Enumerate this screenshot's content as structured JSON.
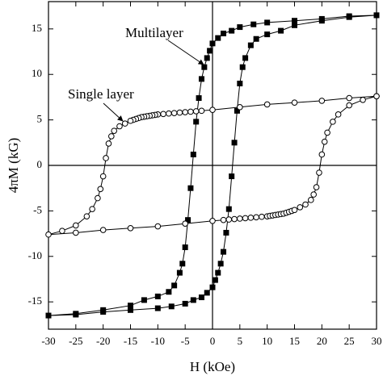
{
  "chart_data": {
    "type": "line",
    "xlabel": "H (kOe)",
    "ylabel": "4πM (kG)",
    "xlim": [
      -30,
      30
    ],
    "ylim": [
      -18,
      18
    ],
    "xticks": [
      -30,
      -25,
      -20,
      -15,
      -10,
      -5,
      0,
      5,
      10,
      15,
      20,
      25,
      30
    ],
    "yticks": [
      -15,
      -10,
      -5,
      0,
      5,
      10,
      15
    ],
    "series": [
      {
        "name": "Multilayer",
        "color": "#000000",
        "marker": "square",
        "x": [
          30,
          25,
          20,
          15,
          10,
          7.5,
          5,
          3.5,
          2,
          1,
          0,
          -0.5,
          -1,
          -1.5,
          -2,
          -2.5,
          -3,
          -3.5,
          -4,
          -4.5,
          -5,
          -5.5,
          -6,
          -7,
          -8,
          -10,
          -12.5,
          -15,
          -20,
          -25,
          -30,
          -25,
          -20,
          -15,
          -10,
          -7.5,
          -5,
          -3.5,
          -2,
          -1,
          0,
          0.5,
          1,
          1.5,
          2,
          2.5,
          3,
          3.5,
          4,
          4.5,
          5,
          5.5,
          6,
          7,
          8,
          10,
          12.5,
          15,
          20,
          25,
          30
        ],
        "values": [
          16.5,
          16.4,
          16.1,
          15.9,
          15.7,
          15.5,
          15.2,
          14.8,
          14.5,
          14.0,
          13.4,
          12.6,
          11.8,
          10.8,
          9.5,
          7.4,
          4.8,
          1.2,
          -2.5,
          -6,
          -9,
          -10.8,
          -11.8,
          -13.2,
          -13.9,
          -14.4,
          -14.8,
          -15.4,
          -15.9,
          -16.3,
          -16.5,
          -16.4,
          -16.1,
          -15.9,
          -15.7,
          -15.5,
          -15.2,
          -14.8,
          -14.5,
          -14.0,
          -13.4,
          -12.6,
          -11.8,
          -10.8,
          -9.5,
          -7.4,
          -4.8,
          -1.2,
          2.5,
          6,
          9,
          10.8,
          11.8,
          13.2,
          13.9,
          14.4,
          14.8,
          15.4,
          15.9,
          16.3,
          16.5
        ]
      },
      {
        "name": "Single layer",
        "color": "#000000",
        "marker": "circle",
        "x": [
          30,
          25,
          20,
          15,
          10,
          5,
          0,
          -2,
          -3,
          -4,
          -5,
          -6,
          -7,
          -8,
          -9,
          -10,
          -10.5,
          -11,
          -11.5,
          -12,
          -12.5,
          -13,
          -13.5,
          -14,
          -14.5,
          -15,
          -16,
          -17,
          -18,
          -18.5,
          -19,
          -19.5,
          -20,
          -20.5,
          -21,
          -22,
          -23,
          -25,
          -27.5,
          -30,
          -25,
          -20,
          -15,
          -10,
          -5,
          0,
          2,
          3,
          4,
          5,
          6,
          7,
          8,
          9,
          10,
          10.5,
          11,
          11.5,
          12,
          12.5,
          13,
          13.5,
          14,
          14.5,
          15,
          16,
          17,
          18,
          18.5,
          19,
          19.5,
          20,
          20.5,
          21,
          22,
          23,
          25,
          27.5,
          30
        ],
        "values": [
          7.6,
          7.4,
          7.1,
          6.9,
          6.7,
          6.4,
          6.1,
          6.0,
          5.95,
          5.9,
          5.85,
          5.8,
          5.75,
          5.7,
          5.65,
          5.6,
          5.55,
          5.5,
          5.45,
          5.4,
          5.35,
          5.3,
          5.2,
          5.1,
          5.0,
          4.9,
          4.6,
          4.3,
          3.8,
          3.2,
          2.4,
          0.8,
          -1.2,
          -2.6,
          -3.6,
          -4.8,
          -5.6,
          -6.6,
          -7.2,
          -7.6,
          -7.4,
          -7.1,
          -6.9,
          -6.7,
          -6.4,
          -6.1,
          -6.0,
          -5.95,
          -5.9,
          -5.85,
          -5.8,
          -5.75,
          -5.7,
          -5.65,
          -5.6,
          -5.55,
          -5.5,
          -5.45,
          -5.4,
          -5.35,
          -5.3,
          -5.2,
          -5.1,
          -5.0,
          -4.9,
          -4.6,
          -4.3,
          -3.8,
          -3.2,
          -2.4,
          -0.8,
          1.2,
          2.6,
          3.6,
          4.8,
          5.6,
          6.6,
          7.2,
          7.6
        ]
      }
    ]
  }
}
